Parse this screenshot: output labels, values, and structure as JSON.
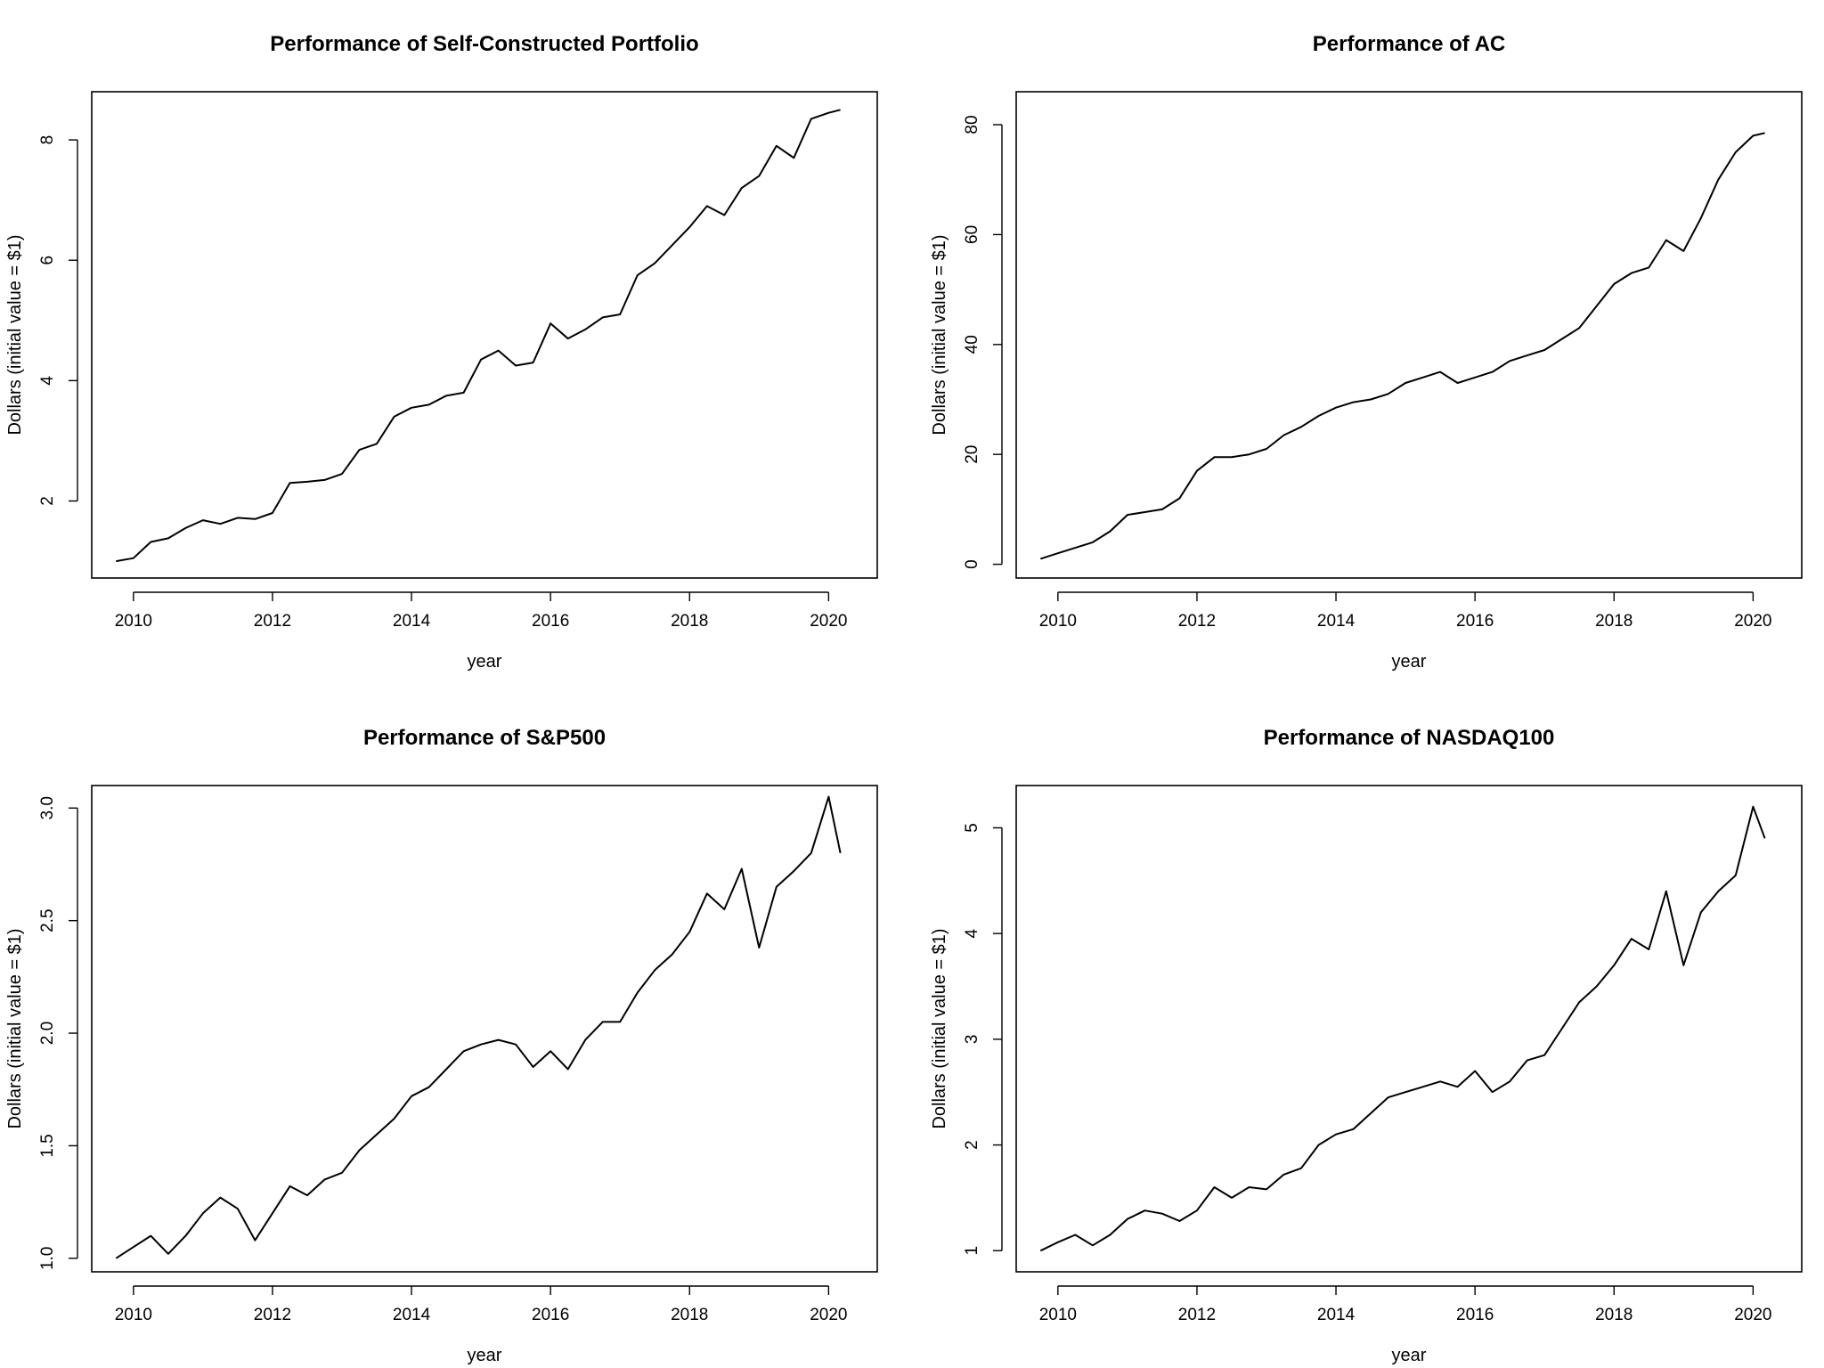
{
  "chart_data": [
    {
      "type": "line",
      "title": "Performance of Self-Constructed Portfolio",
      "xlabel": "year",
      "ylabel": "Dollars (initial value = $1)",
      "xlim": [
        2009.4,
        2020.7
      ],
      "ylim": [
        0.72,
        8.8
      ],
      "xticks": [
        2010,
        2012,
        2014,
        2016,
        2018,
        2020
      ],
      "yticks": [
        2,
        4,
        6,
        8
      ],
      "grid": false,
      "series": [
        {
          "x": [
            2009.75,
            2010,
            2010.25,
            2010.5,
            2010.75,
            2011,
            2011.25,
            2011.5,
            2011.75,
            2012,
            2012.25,
            2012.5,
            2012.75,
            2013,
            2013.25,
            2013.5,
            2013.75,
            2014,
            2014.25,
            2014.5,
            2014.75,
            2015,
            2015.25,
            2015.5,
            2015.75,
            2016,
            2016.25,
            2016.5,
            2016.75,
            2017,
            2017.25,
            2017.5,
            2017.75,
            2018,
            2018.25,
            2018.5,
            2018.75,
            2019,
            2019.25,
            2019.5,
            2019.75,
            2020,
            2020.17
          ],
          "y": [
            1.0,
            1.05,
            1.32,
            1.38,
            1.55,
            1.68,
            1.62,
            1.72,
            1.7,
            1.8,
            2.3,
            2.32,
            2.35,
            2.45,
            2.85,
            2.95,
            3.4,
            3.55,
            3.6,
            3.75,
            3.8,
            4.35,
            4.5,
            4.25,
            4.3,
            4.95,
            4.7,
            4.85,
            5.05,
            5.1,
            5.75,
            5.95,
            6.25,
            6.55,
            6.9,
            6.75,
            7.2,
            7.4,
            7.9,
            7.7,
            8.35,
            8.45,
            8.5
          ]
        }
      ]
    },
    {
      "type": "line",
      "title": "Performance of AC",
      "xlabel": "year",
      "ylabel": "Dollars (initial value = $1)",
      "xlim": [
        2009.4,
        2020.7
      ],
      "ylim": [
        -2.5,
        86
      ],
      "xticks": [
        2010,
        2012,
        2014,
        2016,
        2018,
        2020
      ],
      "yticks": [
        0,
        20,
        40,
        60,
        80
      ],
      "grid": false,
      "series": [
        {
          "x": [
            2009.75,
            2010,
            2010.25,
            2010.5,
            2010.75,
            2011,
            2011.25,
            2011.5,
            2011.75,
            2012,
            2012.25,
            2012.5,
            2012.75,
            2013,
            2013.25,
            2013.5,
            2013.75,
            2014,
            2014.25,
            2014.5,
            2014.75,
            2015,
            2015.25,
            2015.5,
            2015.75,
            2016,
            2016.25,
            2016.5,
            2016.75,
            2017,
            2017.25,
            2017.5,
            2017.75,
            2018,
            2018.25,
            2018.5,
            2018.75,
            2019,
            2019.25,
            2019.5,
            2019.75,
            2020,
            2020.17
          ],
          "y": [
            1.0,
            2.0,
            3.0,
            4.0,
            6.0,
            9.0,
            9.5,
            10.0,
            12.0,
            17.0,
            19.5,
            19.5,
            20.0,
            21.0,
            23.5,
            25.0,
            27.0,
            28.5,
            29.5,
            30.0,
            31.0,
            33.0,
            34.0,
            35.0,
            33.0,
            34.0,
            35.0,
            37.0,
            38.0,
            39.0,
            41.0,
            43.0,
            47.0,
            51.0,
            53.0,
            54.0,
            59.0,
            57.0,
            63.0,
            70.0,
            75.0,
            78.0,
            78.5
          ]
        }
      ]
    },
    {
      "type": "line",
      "title": "Performance of S&P500",
      "xlabel": "year",
      "ylabel": "Dollars (initial value = $1)",
      "xlim": [
        2009.4,
        2020.7
      ],
      "ylim": [
        0.94,
        3.1
      ],
      "xticks": [
        2010,
        2012,
        2014,
        2016,
        2018,
        2020
      ],
      "yticks": [
        1.0,
        1.5,
        2.0,
        2.5,
        3.0
      ],
      "ytick_labels": [
        "1.0",
        "1.5",
        "2.0",
        "2.5",
        "3.0"
      ],
      "grid": false,
      "series": [
        {
          "x": [
            2009.75,
            2010,
            2010.25,
            2010.5,
            2010.75,
            2011,
            2011.25,
            2011.5,
            2011.75,
            2012,
            2012.25,
            2012.5,
            2012.75,
            2013,
            2013.25,
            2013.5,
            2013.75,
            2014,
            2014.25,
            2014.5,
            2014.75,
            2015,
            2015.25,
            2015.5,
            2015.75,
            2016,
            2016.25,
            2016.5,
            2016.75,
            2017,
            2017.25,
            2017.5,
            2017.75,
            2018,
            2018.25,
            2018.5,
            2018.75,
            2019,
            2019.25,
            2019.5,
            2019.75,
            2020,
            2020.17
          ],
          "y": [
            1.0,
            1.05,
            1.1,
            1.02,
            1.1,
            1.2,
            1.27,
            1.22,
            1.08,
            1.2,
            1.32,
            1.28,
            1.35,
            1.38,
            1.48,
            1.55,
            1.62,
            1.72,
            1.76,
            1.84,
            1.92,
            1.95,
            1.97,
            1.95,
            1.85,
            1.92,
            1.84,
            1.97,
            2.05,
            2.05,
            2.18,
            2.28,
            2.35,
            2.45,
            2.62,
            2.55,
            2.73,
            2.38,
            2.65,
            2.72,
            2.8,
            3.05,
            2.8
          ]
        }
      ]
    },
    {
      "type": "line",
      "title": "Performance of NASDAQ100",
      "xlabel": "year",
      "ylabel": "Dollars (initial value = $1)",
      "xlim": [
        2009.4,
        2020.7
      ],
      "ylim": [
        0.8,
        5.4
      ],
      "xticks": [
        2010,
        2012,
        2014,
        2016,
        2018,
        2020
      ],
      "yticks": [
        1,
        2,
        3,
        4,
        5
      ],
      "grid": false,
      "series": [
        {
          "x": [
            2009.75,
            2010,
            2010.25,
            2010.5,
            2010.75,
            2011,
            2011.25,
            2011.5,
            2011.75,
            2012,
            2012.25,
            2012.5,
            2012.75,
            2013,
            2013.25,
            2013.5,
            2013.75,
            2014,
            2014.25,
            2014.5,
            2014.75,
            2015,
            2015.25,
            2015.5,
            2015.75,
            2016,
            2016.25,
            2016.5,
            2016.75,
            2017,
            2017.25,
            2017.5,
            2017.75,
            2018,
            2018.25,
            2018.5,
            2018.75,
            2019,
            2019.25,
            2019.5,
            2019.75,
            2020,
            2020.17
          ],
          "y": [
            1.0,
            1.08,
            1.15,
            1.05,
            1.15,
            1.3,
            1.38,
            1.35,
            1.28,
            1.38,
            1.6,
            1.5,
            1.6,
            1.58,
            1.72,
            1.78,
            2.0,
            2.1,
            2.15,
            2.3,
            2.45,
            2.5,
            2.55,
            2.6,
            2.55,
            2.7,
            2.5,
            2.6,
            2.8,
            2.85,
            3.1,
            3.35,
            3.5,
            3.7,
            3.95,
            3.85,
            4.4,
            3.7,
            4.2,
            4.4,
            4.55,
            5.2,
            4.9
          ]
        }
      ]
    }
  ]
}
